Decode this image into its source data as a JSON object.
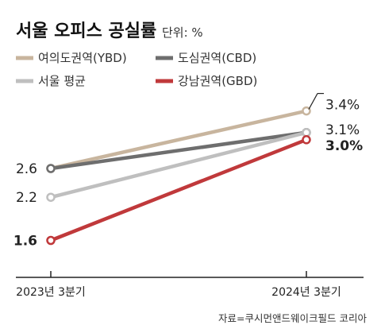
{
  "colors": {
    "ybd": "#c8b59e",
    "cbd": "#6e6e6e",
    "seoul": "#bfbfbf",
    "gbd": "#c0393b",
    "frame": "#222222"
  },
  "chart_data": {
    "type": "line",
    "title": "서울 오피스 공실률",
    "unit_label": "단위: %",
    "x": [
      "2023년 3분기",
      "2024년 3분기"
    ],
    "series": [
      {
        "key": "ybd",
        "name": "여의도권역(YBD)",
        "values": [
          2.6,
          3.4
        ],
        "labels": [
          "2.6",
          "3.4%"
        ]
      },
      {
        "key": "cbd",
        "name": "도심권역(CBD)",
        "values": [
          2.6,
          3.1
        ],
        "labels": [
          "",
          "3.1%"
        ]
      },
      {
        "key": "seoul",
        "name": "서울 평균",
        "values": [
          2.2,
          3.1
        ],
        "labels": [
          "2.2",
          ""
        ]
      },
      {
        "key": "gbd",
        "name": "강남권역(GBD)",
        "values": [
          1.6,
          3.0
        ],
        "labels": [
          "1.6",
          "3.0%"
        ]
      }
    ],
    "legend_position": "top-left",
    "grid": false,
    "source": "자료=쿠시먼앤드웨이크필드 코리아"
  }
}
